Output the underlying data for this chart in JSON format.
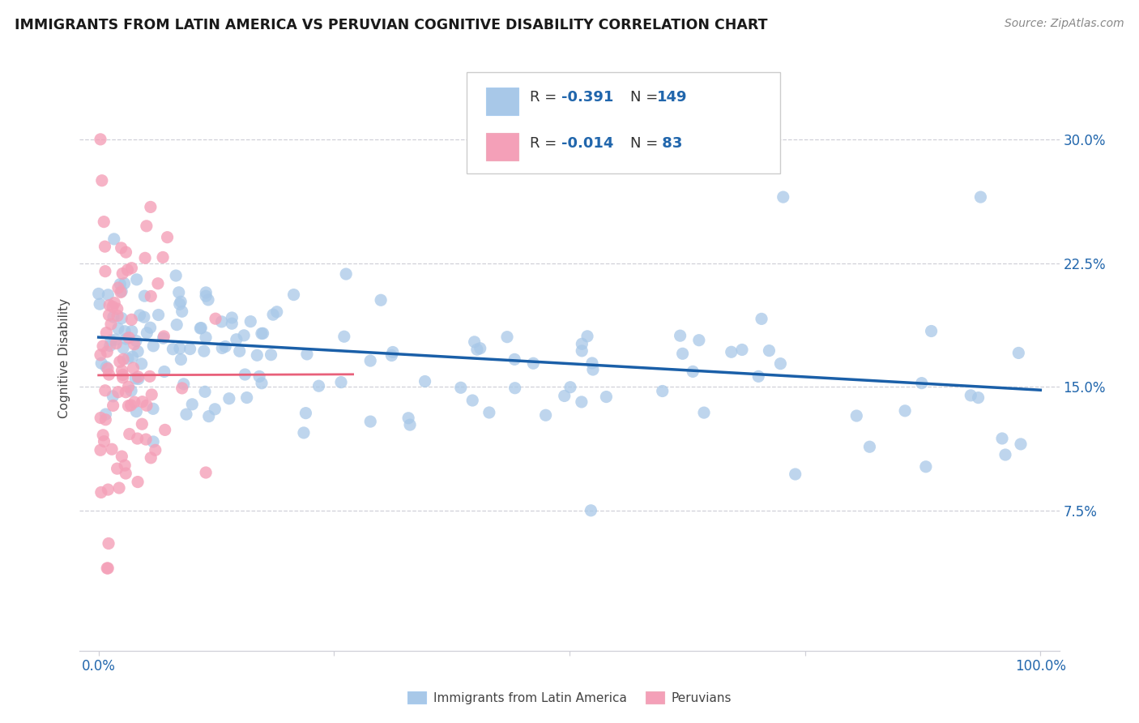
{
  "title": "IMMIGRANTS FROM LATIN AMERICA VS PERUVIAN COGNITIVE DISABILITY CORRELATION CHART",
  "source": "Source: ZipAtlas.com",
  "ylabel": "Cognitive Disability",
  "yticks": [
    0.075,
    0.15,
    0.225,
    0.3
  ],
  "ytick_labels": [
    "7.5%",
    "15.0%",
    "22.5%",
    "30.0%"
  ],
  "xlim": [
    -0.02,
    1.02
  ],
  "ylim": [
    -0.01,
    0.345
  ],
  "blue_R": -0.391,
  "blue_N": 149,
  "pink_R": -0.014,
  "pink_N": 83,
  "blue_dot_color": "#a8c8e8",
  "pink_dot_color": "#f4a0b8",
  "blue_line_color": "#1a5fa8",
  "pink_line_color": "#e8607a",
  "dashed_line_color": "#c8c8d0",
  "background_color": "#ffffff",
  "legend_label1": "Immigrants from Latin America",
  "legend_label2": "Peruvians"
}
